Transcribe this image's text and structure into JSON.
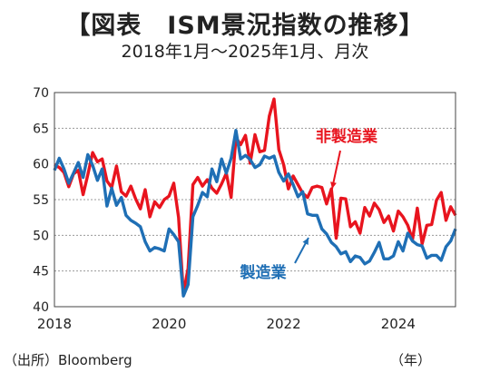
{
  "chart_data": {
    "type": "line",
    "title": "【図表　ISM景況指数の推移】",
    "subtitle": "2018年1月～2025年1月、月次",
    "source": "（出所）Bloomberg",
    "x_unit": "（年）",
    "xlim": [
      "2018-01",
      "2025-01"
    ],
    "ylim": [
      40,
      70
    ],
    "y_ticks": [
      "40",
      "45",
      "50",
      "55",
      "60",
      "65",
      "70"
    ],
    "x_ticks": [
      "2018",
      "2020",
      "2022",
      "2024"
    ],
    "grid": true,
    "series": [
      {
        "name": "非製造業",
        "color": "#e8141e",
        "points": [
          [
            "2018-01",
            59.9
          ],
          [
            "2018-02",
            59.5
          ],
          [
            "2018-03",
            58.8
          ],
          [
            "2018-04",
            56.8
          ],
          [
            "2018-05",
            58.6
          ],
          [
            "2018-06",
            59.1
          ],
          [
            "2018-07",
            55.7
          ],
          [
            "2018-08",
            58.5
          ],
          [
            "2018-09",
            61.6
          ],
          [
            "2018-10",
            60.3
          ],
          [
            "2018-11",
            60.7
          ],
          [
            "2018-12",
            57.6
          ],
          [
            "2019-01",
            56.7
          ],
          [
            "2019-02",
            59.7
          ],
          [
            "2019-03",
            56.1
          ],
          [
            "2019-04",
            55.5
          ],
          [
            "2019-05",
            56.9
          ],
          [
            "2019-06",
            55.1
          ],
          [
            "2019-07",
            53.7
          ],
          [
            "2019-08",
            56.4
          ],
          [
            "2019-09",
            52.6
          ],
          [
            "2019-10",
            54.7
          ],
          [
            "2019-11",
            53.9
          ],
          [
            "2019-12",
            55.0
          ],
          [
            "2020-01",
            55.5
          ],
          [
            "2020-02",
            57.3
          ],
          [
            "2020-03",
            52.5
          ],
          [
            "2020-04",
            41.8
          ],
          [
            "2020-05",
            45.4
          ],
          [
            "2020-06",
            57.1
          ],
          [
            "2020-07",
            58.1
          ],
          [
            "2020-08",
            56.9
          ],
          [
            "2020-09",
            57.8
          ],
          [
            "2020-10",
            56.6
          ],
          [
            "2020-11",
            55.9
          ],
          [
            "2020-12",
            57.2
          ],
          [
            "2021-01",
            58.7
          ],
          [
            "2021-02",
            55.3
          ],
          [
            "2021-03",
            63.7
          ],
          [
            "2021-04",
            62.7
          ],
          [
            "2021-05",
            64.0
          ],
          [
            "2021-06",
            60.1
          ],
          [
            "2021-07",
            64.1
          ],
          [
            "2021-08",
            61.7
          ],
          [
            "2021-09",
            61.9
          ],
          [
            "2021-10",
            66.7
          ],
          [
            "2021-11",
            69.1
          ],
          [
            "2021-12",
            62.0
          ],
          [
            "2022-01",
            59.9
          ],
          [
            "2022-02",
            56.5
          ],
          [
            "2022-03",
            58.3
          ],
          [
            "2022-04",
            57.1
          ],
          [
            "2022-05",
            55.9
          ],
          [
            "2022-06",
            55.3
          ],
          [
            "2022-07",
            56.7
          ],
          [
            "2022-08",
            56.9
          ],
          [
            "2022-09",
            56.7
          ],
          [
            "2022-10",
            54.4
          ],
          [
            "2022-11",
            56.5
          ],
          [
            "2022-12",
            49.6
          ],
          [
            "2023-01",
            55.2
          ],
          [
            "2023-02",
            55.1
          ],
          [
            "2023-03",
            51.2
          ],
          [
            "2023-04",
            51.9
          ],
          [
            "2023-05",
            50.3
          ],
          [
            "2023-06",
            53.9
          ],
          [
            "2023-07",
            52.7
          ],
          [
            "2023-08",
            54.5
          ],
          [
            "2023-09",
            53.6
          ],
          [
            "2023-10",
            51.8
          ],
          [
            "2023-11",
            52.7
          ],
          [
            "2023-12",
            50.6
          ],
          [
            "2024-01",
            53.4
          ],
          [
            "2024-02",
            52.6
          ],
          [
            "2024-03",
            51.4
          ],
          [
            "2024-04",
            49.4
          ],
          [
            "2024-05",
            53.8
          ],
          [
            "2024-06",
            48.8
          ],
          [
            "2024-07",
            51.4
          ],
          [
            "2024-08",
            51.5
          ],
          [
            "2024-09",
            54.9
          ],
          [
            "2024-10",
            56.0
          ],
          [
            "2024-11",
            52.1
          ],
          [
            "2024-12",
            54.0
          ],
          [
            "2025-01",
            52.8
          ]
        ]
      },
      {
        "name": "製造業",
        "color": "#1f6fb5",
        "points": [
          [
            "2018-01",
            59.1
          ],
          [
            "2018-02",
            60.8
          ],
          [
            "2018-03",
            59.3
          ],
          [
            "2018-04",
            57.3
          ],
          [
            "2018-05",
            58.7
          ],
          [
            "2018-06",
            60.2
          ],
          [
            "2018-07",
            58.1
          ],
          [
            "2018-08",
            61.3
          ],
          [
            "2018-09",
            59.8
          ],
          [
            "2018-10",
            57.7
          ],
          [
            "2018-11",
            59.3
          ],
          [
            "2018-12",
            54.1
          ],
          [
            "2019-01",
            56.6
          ],
          [
            "2019-02",
            54.2
          ],
          [
            "2019-03",
            55.3
          ],
          [
            "2019-04",
            52.8
          ],
          [
            "2019-05",
            52.1
          ],
          [
            "2019-06",
            51.7
          ],
          [
            "2019-07",
            51.2
          ],
          [
            "2019-08",
            49.1
          ],
          [
            "2019-09",
            47.8
          ],
          [
            "2019-10",
            48.3
          ],
          [
            "2019-11",
            48.1
          ],
          [
            "2019-12",
            47.8
          ],
          [
            "2020-01",
            50.9
          ],
          [
            "2020-02",
            50.1
          ],
          [
            "2020-03",
            49.1
          ],
          [
            "2020-04",
            41.5
          ],
          [
            "2020-05",
            43.1
          ],
          [
            "2020-06",
            52.6
          ],
          [
            "2020-07",
            54.2
          ],
          [
            "2020-08",
            56.0
          ],
          [
            "2020-09",
            55.4
          ],
          [
            "2020-10",
            59.3
          ],
          [
            "2020-11",
            57.5
          ],
          [
            "2020-12",
            60.7
          ],
          [
            "2021-01",
            58.7
          ],
          [
            "2021-02",
            60.8
          ],
          [
            "2021-03",
            64.7
          ],
          [
            "2021-04",
            60.7
          ],
          [
            "2021-05",
            61.2
          ],
          [
            "2021-06",
            60.6
          ],
          [
            "2021-07",
            59.5
          ],
          [
            "2021-08",
            59.9
          ],
          [
            "2021-09",
            61.1
          ],
          [
            "2021-10",
            60.8
          ],
          [
            "2021-11",
            61.1
          ],
          [
            "2021-12",
            58.8
          ],
          [
            "2022-01",
            57.6
          ],
          [
            "2022-02",
            58.6
          ],
          [
            "2022-03",
            57.1
          ],
          [
            "2022-04",
            55.4
          ],
          [
            "2022-05",
            56.1
          ],
          [
            "2022-06",
            53.0
          ],
          [
            "2022-07",
            52.8
          ],
          [
            "2022-08",
            52.8
          ],
          [
            "2022-09",
            50.9
          ],
          [
            "2022-10",
            50.2
          ],
          [
            "2022-11",
            49.0
          ],
          [
            "2022-12",
            48.4
          ],
          [
            "2023-01",
            47.4
          ],
          [
            "2023-02",
            47.7
          ],
          [
            "2023-03",
            46.3
          ],
          [
            "2023-04",
            47.1
          ],
          [
            "2023-05",
            46.9
          ],
          [
            "2023-06",
            46.0
          ],
          [
            "2023-07",
            46.4
          ],
          [
            "2023-08",
            47.6
          ],
          [
            "2023-09",
            49.0
          ],
          [
            "2023-10",
            46.7
          ],
          [
            "2023-11",
            46.7
          ],
          [
            "2023-12",
            47.1
          ],
          [
            "2024-01",
            49.1
          ],
          [
            "2024-02",
            47.8
          ],
          [
            "2024-03",
            50.3
          ],
          [
            "2024-04",
            49.2
          ],
          [
            "2024-05",
            48.7
          ],
          [
            "2024-06",
            48.5
          ],
          [
            "2024-07",
            46.8
          ],
          [
            "2024-08",
            47.2
          ],
          [
            "2024-09",
            47.2
          ],
          [
            "2024-10",
            46.5
          ],
          [
            "2024-11",
            48.4
          ],
          [
            "2024-12",
            49.2
          ],
          [
            "2025-01",
            50.9
          ]
        ]
      }
    ],
    "annotations": [
      {
        "text": "非製造業",
        "series": "非製造業",
        "arrow": true
      },
      {
        "text": "製造業",
        "series": "製造業",
        "arrow": true
      }
    ]
  }
}
